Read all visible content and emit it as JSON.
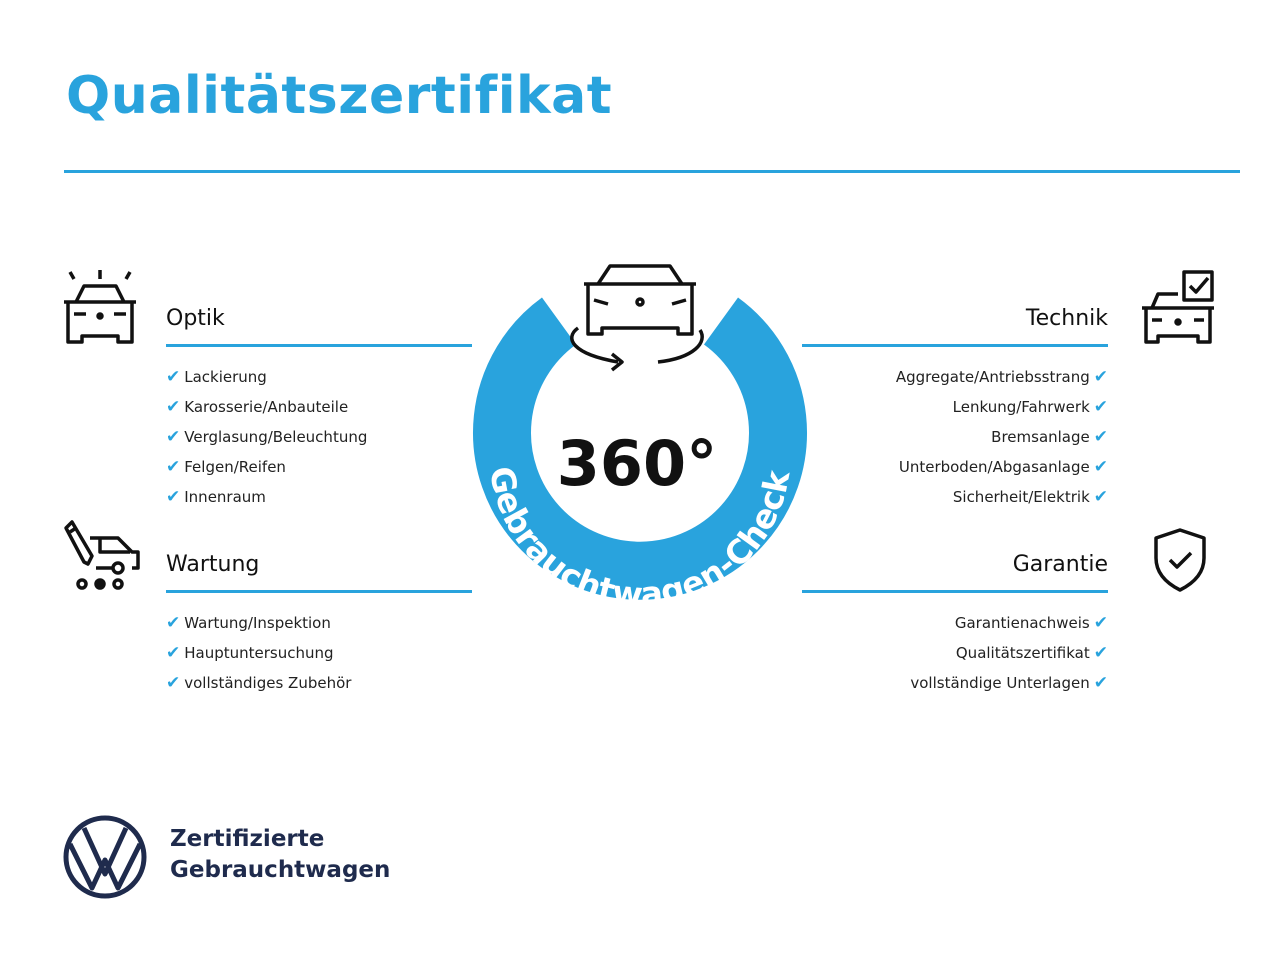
{
  "title": "Qualitätszertifikat",
  "accent_color": "#29a3dd",
  "center": {
    "number": "360°",
    "ring_text": "Gebrauchtwagen-Check",
    "icon": "car-rotate-icon"
  },
  "sections": {
    "optik": {
      "heading": "Optik",
      "icon": "car-lights-icon",
      "items": [
        "Lackierung",
        "Karosserie/Anbauteile",
        "Verglasung/Beleuchtung",
        "Felgen/Reifen",
        "Innenraum"
      ]
    },
    "wartung": {
      "heading": "Wartung",
      "icon": "service-van-icon",
      "items": [
        "Wartung/Inspektion",
        "Hauptuntersuchung",
        "vollständiges Zubehör"
      ]
    },
    "technik": {
      "heading": "Technik",
      "icon": "car-checkbox-icon",
      "items": [
        "Aggregate/Antriebsstrang",
        "Lenkung/Fahrwerk",
        "Bremsanlage",
        "Unterboden/Abgasanlage",
        "Sicherheit/Elektrik"
      ]
    },
    "garantie": {
      "heading": "Garantie",
      "icon": "shield-check-icon",
      "items": [
        "Garantienachweis",
        "Qualitätszertifikat",
        "vollständige Unterlagen"
      ]
    }
  },
  "check_mark": "✔",
  "footer": {
    "line1": "Zertifizierte",
    "line2": "Gebrauchtwagen",
    "logo": "vw-logo"
  }
}
